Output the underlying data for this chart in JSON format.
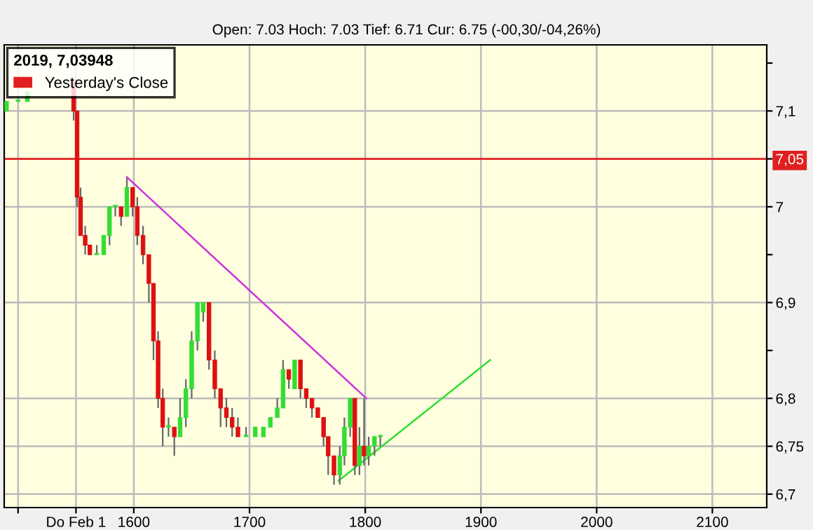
{
  "chart_data": {
    "type": "candlestick",
    "subtitle": "Open: 7.03 Hoch: 7.03 Tief: 6.71 Cur: 6.75 (-00,30/-04,26%)",
    "legend_title": "2019, 7,03948",
    "legend": "top left",
    "grid": true,
    "xlim": [
      1488,
      2147
    ],
    "xticks": [
      {
        "value": 1500,
        "label": null
      },
      {
        "value": 1550,
        "label": "Do Feb 1"
      },
      1600,
      1700,
      1800,
      1900,
      2000,
      2100
    ],
    "ylim": [
      6.686,
      7.169
    ],
    "yticks": [
      {
        "value": 7.15,
        "label": null
      },
      {
        "value": 7.1,
        "label": "7,1"
      },
      {
        "value": 7.05,
        "label": "7,05"
      },
      {
        "value": 7,
        "label": "7"
      },
      {
        "value": 6.95,
        "label": null
      },
      {
        "value": 6.9,
        "label": "6,9"
      },
      {
        "value": 6.85,
        "label": null
      },
      {
        "value": 6.8,
        "label": "6,8"
      },
      {
        "value": 6.75,
        "label": "6,75"
      },
      {
        "value": 6.7,
        "label": "6,7"
      }
    ],
    "ref_lines": [
      {
        "axis": "y",
        "value": 7.05,
        "label": "Yesterday's Close",
        "color": "#e02020"
      }
    ],
    "x": [
      1490,
      1500,
      1508,
      1548,
      1551,
      1554,
      1558,
      1562,
      1568,
      1574,
      1579,
      1584,
      1589,
      1594,
      1599,
      1603,
      1608,
      1613,
      1617,
      1621,
      1625,
      1630,
      1635,
      1640,
      1645,
      1650,
      1655,
      1660,
      1665,
      1670,
      1675,
      1680,
      1685,
      1690,
      1697,
      1705,
      1712,
      1718,
      1724,
      1729,
      1734,
      1739,
      1744,
      1749,
      1754,
      1759,
      1764,
      1768,
      1773,
      1778,
      1782,
      1787,
      1791,
      1795,
      1799,
      1803,
      1808,
      1813
    ],
    "ohlc": [
      [
        7.1,
        7.11,
        7.1,
        7.11
      ],
      [
        7.11,
        7.11,
        7.11,
        7.11
      ],
      [
        7.11,
        7.12,
        7.11,
        7.12
      ],
      [
        7.13,
        7.13,
        7.09,
        7.1
      ],
      [
        7.1,
        7.1,
        7.0,
        7.01
      ],
      [
        7.01,
        7.02,
        6.97,
        6.97
      ],
      [
        6.97,
        6.98,
        6.95,
        6.96
      ],
      [
        6.96,
        6.96,
        6.95,
        6.95
      ],
      [
        6.95,
        6.96,
        6.95,
        6.95
      ],
      [
        6.95,
        6.97,
        6.95,
        6.97
      ],
      [
        6.97,
        7.0,
        6.96,
        7.0
      ],
      [
        7.0,
        7.0,
        6.99,
        7.0
      ],
      [
        7.0,
        7.0,
        6.98,
        6.99
      ],
      [
        6.99,
        7.03,
        6.99,
        7.02
      ],
      [
        7.02,
        7.02,
        6.99,
        7.0
      ],
      [
        7.0,
        7.01,
        6.96,
        6.97
      ],
      [
        6.97,
        6.98,
        6.94,
        6.95
      ],
      [
        6.95,
        6.95,
        6.9,
        6.92
      ],
      [
        6.92,
        6.92,
        6.84,
        6.86
      ],
      [
        6.86,
        6.87,
        6.79,
        6.8
      ],
      [
        6.8,
        6.81,
        6.75,
        6.77
      ],
      [
        6.77,
        6.78,
        6.76,
        6.77
      ],
      [
        6.77,
        6.77,
        6.74,
        6.76
      ],
      [
        6.76,
        6.8,
        6.76,
        6.78
      ],
      [
        6.78,
        6.82,
        6.77,
        6.81
      ],
      [
        6.81,
        6.87,
        6.8,
        6.86
      ],
      [
        6.86,
        6.9,
        6.85,
        6.9
      ],
      [
        6.89,
        6.9,
        6.88,
        6.9
      ],
      [
        6.9,
        6.9,
        6.83,
        6.84
      ],
      [
        6.84,
        6.85,
        6.8,
        6.81
      ],
      [
        6.81,
        6.81,
        6.77,
        6.79
      ],
      [
        6.79,
        6.8,
        6.77,
        6.78
      ],
      [
        6.78,
        6.79,
        6.76,
        6.77
      ],
      [
        6.77,
        6.78,
        6.76,
        6.76
      ],
      [
        6.76,
        6.77,
        6.76,
        6.76
      ],
      [
        6.76,
        6.77,
        6.76,
        6.77
      ],
      [
        6.76,
        6.77,
        6.76,
        6.77
      ],
      [
        6.77,
        6.78,
        6.77,
        6.78
      ],
      [
        6.78,
        6.8,
        6.78,
        6.79
      ],
      [
        6.79,
        6.84,
        6.79,
        6.83
      ],
      [
        6.83,
        6.83,
        6.81,
        6.82
      ],
      [
        6.81,
        6.84,
        6.81,
        6.84
      ],
      [
        6.84,
        6.84,
        6.8,
        6.81
      ],
      [
        6.81,
        6.81,
        6.79,
        6.8
      ],
      [
        6.8,
        6.8,
        6.78,
        6.79
      ],
      [
        6.79,
        6.79,
        6.78,
        6.78
      ],
      [
        6.78,
        6.78,
        6.75,
        6.76
      ],
      [
        6.76,
        6.76,
        6.72,
        6.74
      ],
      [
        6.74,
        6.74,
        6.71,
        6.72
      ],
      [
        6.72,
        6.75,
        6.71,
        6.74
      ],
      [
        6.74,
        6.78,
        6.73,
        6.77
      ],
      [
        6.77,
        6.8,
        6.76,
        6.8
      ],
      [
        6.8,
        6.8,
        6.72,
        6.73
      ],
      [
        6.73,
        6.77,
        6.72,
        6.75
      ],
      [
        6.75,
        6.8,
        6.73,
        6.74
      ],
      [
        6.74,
        6.76,
        6.73,
        6.75
      ],
      [
        6.75,
        6.76,
        6.74,
        6.76
      ],
      [
        6.76,
        6.76,
        6.75,
        6.76
      ]
    ],
    "series": [
      {
        "type": "line",
        "color": "#cc33dd",
        "x": [
          1594,
          1801
        ],
        "values": [
          7.031,
          6.8
        ]
      },
      {
        "type": "line",
        "color": "#33dd33",
        "x": [
          1777,
          1908
        ],
        "values": [
          6.714,
          6.84
        ]
      }
    ]
  }
}
